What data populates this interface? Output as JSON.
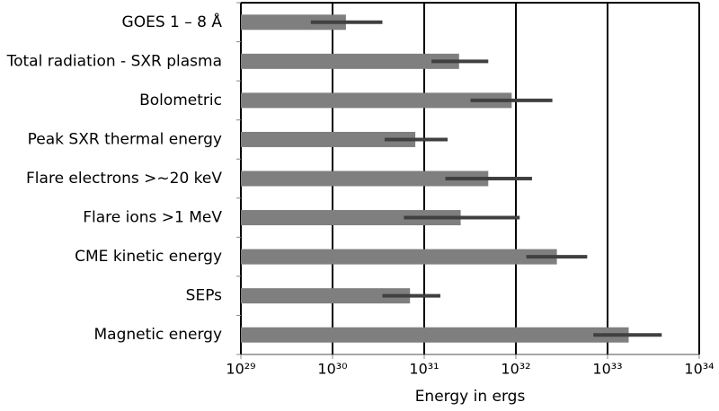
{
  "chart_data": {
    "type": "bar",
    "orientation": "horizontal",
    "categories": [
      "GOES 1 – 8 Å",
      "Total radiation - SXR plasma",
      "Bolometric",
      "Peak SXR thermal energy",
      "Flare electrons >~20 keV",
      "Flare ions >1 MeV",
      "CME kinetic energy",
      "SEPs",
      "Magnetic energy"
    ],
    "values": [
      1.4e+30,
      2.4e+31,
      9e+31,
      8e+30,
      5e+31,
      2.5e+31,
      2.8e+32,
      7e+30,
      1.7e+33
    ],
    "err_low": [
      5.8e+29,
      1.2e+31,
      3.2e+31,
      3.7e+30,
      1.7e+31,
      6e+30,
      1.3e+32,
      3.5e+30,
      7e+32
    ],
    "err_high": [
      3.5e+30,
      5e+31,
      2.5e+32,
      1.8e+31,
      1.5e+32,
      1.1e+32,
      6e+32,
      1.5e+31,
      3.9e+33
    ],
    "color": "#7f7f7f",
    "error_color": "#404040",
    "xlabel": "Energy in ergs",
    "xscale": "log",
    "xlim": [
      1e+29,
      1e+34
    ],
    "xticks": [
      {
        "value": 1e+29,
        "label": "10²⁹"
      },
      {
        "value": 1e+30,
        "label": "10³⁰"
      },
      {
        "value": 1e+31,
        "label": "10³¹"
      },
      {
        "value": 1e+32,
        "label": "10³²"
      },
      {
        "value": 1e+33,
        "label": "10³³"
      },
      {
        "value": 1e+34,
        "label": "10³⁴"
      }
    ],
    "grid": true
  }
}
